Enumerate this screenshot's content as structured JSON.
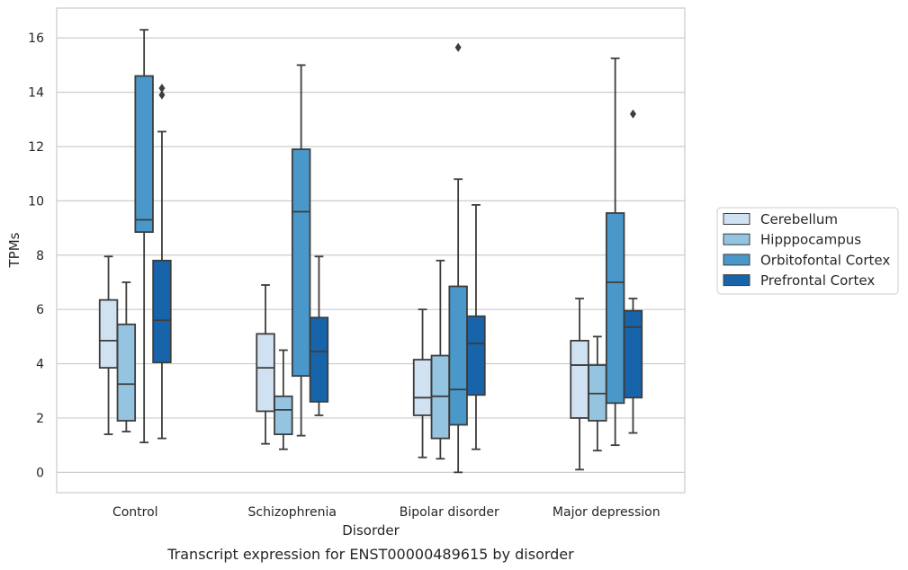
{
  "chart_data": {
    "type": "box",
    "title": "",
    "caption": "Transcript expression for ENST00000489615 by disorder",
    "xlabel": "Disorder",
    "ylabel": "TPMs",
    "ylim": [
      -0.75,
      17.1
    ],
    "yticks": [
      0,
      2,
      4,
      6,
      8,
      10,
      12,
      14,
      16
    ],
    "grid": "horizontal",
    "legend_position": "right",
    "categories": [
      "Control",
      "Schizophrenia",
      "Bipolar disorder",
      "Major depression"
    ],
    "series": [
      {
        "name": "Cerebellum",
        "color": "#d0e1f2",
        "boxes": [
          {
            "whisker_low": 1.4,
            "q1": 3.85,
            "median": 4.85,
            "q3": 6.35,
            "whisker_high": 7.95,
            "outliers": []
          },
          {
            "whisker_low": 1.05,
            "q1": 2.25,
            "median": 3.85,
            "q3": 5.1,
            "whisker_high": 6.9,
            "outliers": []
          },
          {
            "whisker_low": 0.55,
            "q1": 2.1,
            "median": 2.75,
            "q3": 4.15,
            "whisker_high": 6.0,
            "outliers": []
          },
          {
            "whisker_low": 0.1,
            "q1": 2.0,
            "median": 3.95,
            "q3": 4.85,
            "whisker_high": 6.4,
            "outliers": []
          }
        ]
      },
      {
        "name": "Hipppocampus",
        "color": "#94c4df",
        "boxes": [
          {
            "whisker_low": 1.5,
            "q1": 1.9,
            "median": 3.25,
            "q3": 5.45,
            "whisker_high": 7.0,
            "outliers": []
          },
          {
            "whisker_low": 0.85,
            "q1": 1.4,
            "median": 2.3,
            "q3": 2.8,
            "whisker_high": 4.5,
            "outliers": []
          },
          {
            "whisker_low": 0.5,
            "q1": 1.25,
            "median": 2.8,
            "q3": 4.3,
            "whisker_high": 7.8,
            "outliers": []
          },
          {
            "whisker_low": 0.8,
            "q1": 1.9,
            "median": 2.9,
            "q3": 3.95,
            "whisker_high": 5.0,
            "outliers": []
          }
        ]
      },
      {
        "name": "Orbitofontal Cortex",
        "color": "#4a98c9",
        "boxes": [
          {
            "whisker_low": 1.1,
            "q1": 8.85,
            "median": 9.3,
            "q3": 14.6,
            "whisker_high": 16.3,
            "outliers": []
          },
          {
            "whisker_low": 1.35,
            "q1": 3.55,
            "median": 9.6,
            "q3": 11.9,
            "whisker_high": 15.0,
            "outliers": []
          },
          {
            "whisker_low": 0.0,
            "q1": 1.75,
            "median": 3.05,
            "q3": 6.85,
            "whisker_high": 10.8,
            "outliers": [
              15.65
            ]
          },
          {
            "whisker_low": 1.0,
            "q1": 2.55,
            "median": 7.0,
            "q3": 9.55,
            "whisker_high": 15.25,
            "outliers": []
          }
        ]
      },
      {
        "name": "Prefrontal Cortex",
        "color": "#1764ab",
        "boxes": [
          {
            "whisker_low": 1.25,
            "q1": 4.05,
            "median": 5.6,
            "q3": 7.8,
            "whisker_high": 12.55,
            "outliers": [
              13.9,
              14.15
            ]
          },
          {
            "whisker_low": 2.1,
            "q1": 2.6,
            "median": 4.45,
            "q3": 5.7,
            "whisker_high": 7.95,
            "outliers": []
          },
          {
            "whisker_low": 0.85,
            "q1": 2.85,
            "median": 4.75,
            "q3": 5.75,
            "whisker_high": 9.85,
            "outliers": []
          },
          {
            "whisker_low": 1.45,
            "q1": 2.75,
            "median": 5.35,
            "q3": 5.95,
            "whisker_high": 6.4,
            "outliers": [
              13.2
            ]
          }
        ]
      }
    ]
  }
}
